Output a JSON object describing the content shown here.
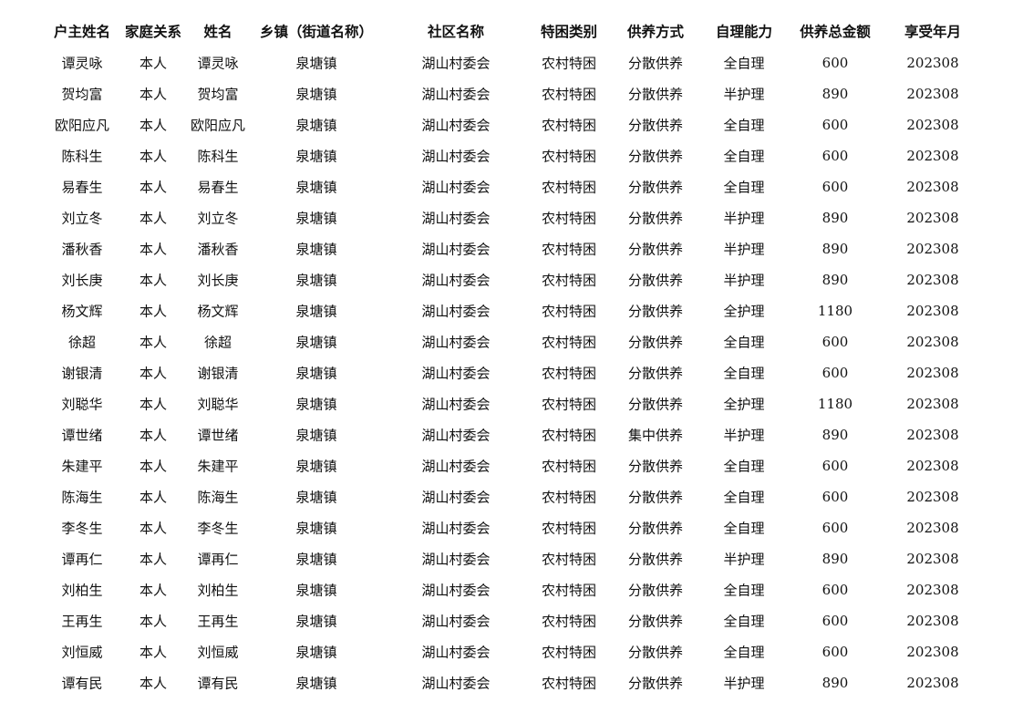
{
  "table": {
    "headers": [
      "户主姓名",
      "家庭关系",
      "姓名",
      "乡镇（街道名称）",
      "社区名称",
      "特困类别",
      "供养方式",
      "自理能力",
      "供养总金额",
      "享受年月"
    ],
    "rows": [
      [
        "谭灵咏",
        "本人",
        "谭灵咏",
        "泉塘镇",
        "湖山村委会",
        "农村特困",
        "分散供养",
        "全自理",
        "600",
        "202308"
      ],
      [
        "贺均富",
        "本人",
        "贺均富",
        "泉塘镇",
        "湖山村委会",
        "农村特困",
        "分散供养",
        "半护理",
        "890",
        "202308"
      ],
      [
        "欧阳应凡",
        "本人",
        "欧阳应凡",
        "泉塘镇",
        "湖山村委会",
        "农村特困",
        "分散供养",
        "全自理",
        "600",
        "202308"
      ],
      [
        "陈科生",
        "本人",
        "陈科生",
        "泉塘镇",
        "湖山村委会",
        "农村特困",
        "分散供养",
        "全自理",
        "600",
        "202308"
      ],
      [
        "易春生",
        "本人",
        "易春生",
        "泉塘镇",
        "湖山村委会",
        "农村特困",
        "分散供养",
        "全自理",
        "600",
        "202308"
      ],
      [
        "刘立冬",
        "本人",
        "刘立冬",
        "泉塘镇",
        "湖山村委会",
        "农村特困",
        "分散供养",
        "半护理",
        "890",
        "202308"
      ],
      [
        "潘秋香",
        "本人",
        "潘秋香",
        "泉塘镇",
        "湖山村委会",
        "农村特困",
        "分散供养",
        "半护理",
        "890",
        "202308"
      ],
      [
        "刘长庚",
        "本人",
        "刘长庚",
        "泉塘镇",
        "湖山村委会",
        "农村特困",
        "分散供养",
        "半护理",
        "890",
        "202308"
      ],
      [
        "杨文辉",
        "本人",
        "杨文辉",
        "泉塘镇",
        "湖山村委会",
        "农村特困",
        "分散供养",
        "全护理",
        "1180",
        "202308"
      ],
      [
        "徐超",
        "本人",
        "徐超",
        "泉塘镇",
        "湖山村委会",
        "农村特困",
        "分散供养",
        "全自理",
        "600",
        "202308"
      ],
      [
        "谢银清",
        "本人",
        "谢银清",
        "泉塘镇",
        "湖山村委会",
        "农村特困",
        "分散供养",
        "全自理",
        "600",
        "202308"
      ],
      [
        "刘聪华",
        "本人",
        "刘聪华",
        "泉塘镇",
        "湖山村委会",
        "农村特困",
        "分散供养",
        "全护理",
        "1180",
        "202308"
      ],
      [
        "谭世绪",
        "本人",
        "谭世绪",
        "泉塘镇",
        "湖山村委会",
        "农村特困",
        "集中供养",
        "半护理",
        "890",
        "202308"
      ],
      [
        "朱建平",
        "本人",
        "朱建平",
        "泉塘镇",
        "湖山村委会",
        "农村特困",
        "分散供养",
        "全自理",
        "600",
        "202308"
      ],
      [
        "陈海生",
        "本人",
        "陈海生",
        "泉塘镇",
        "湖山村委会",
        "农村特困",
        "分散供养",
        "全自理",
        "600",
        "202308"
      ],
      [
        "李冬生",
        "本人",
        "李冬生",
        "泉塘镇",
        "湖山村委会",
        "农村特困",
        "分散供养",
        "全自理",
        "600",
        "202308"
      ],
      [
        "谭再仁",
        "本人",
        "谭再仁",
        "泉塘镇",
        "湖山村委会",
        "农村特困",
        "分散供养",
        "半护理",
        "890",
        "202308"
      ],
      [
        "刘柏生",
        "本人",
        "刘柏生",
        "泉塘镇",
        "湖山村委会",
        "农村特困",
        "分散供养",
        "全自理",
        "600",
        "202308"
      ],
      [
        "王再生",
        "本人",
        "王再生",
        "泉塘镇",
        "湖山村委会",
        "农村特困",
        "分散供养",
        "全自理",
        "600",
        "202308"
      ],
      [
        "刘恒威",
        "本人",
        "刘恒威",
        "泉塘镇",
        "湖山村委会",
        "农村特困",
        "分散供养",
        "全自理",
        "600",
        "202308"
      ],
      [
        "谭有民",
        "本人",
        "谭有民",
        "泉塘镇",
        "湖山村委会",
        "农村特困",
        "分散供养",
        "半护理",
        "890",
        "202308"
      ]
    ]
  }
}
